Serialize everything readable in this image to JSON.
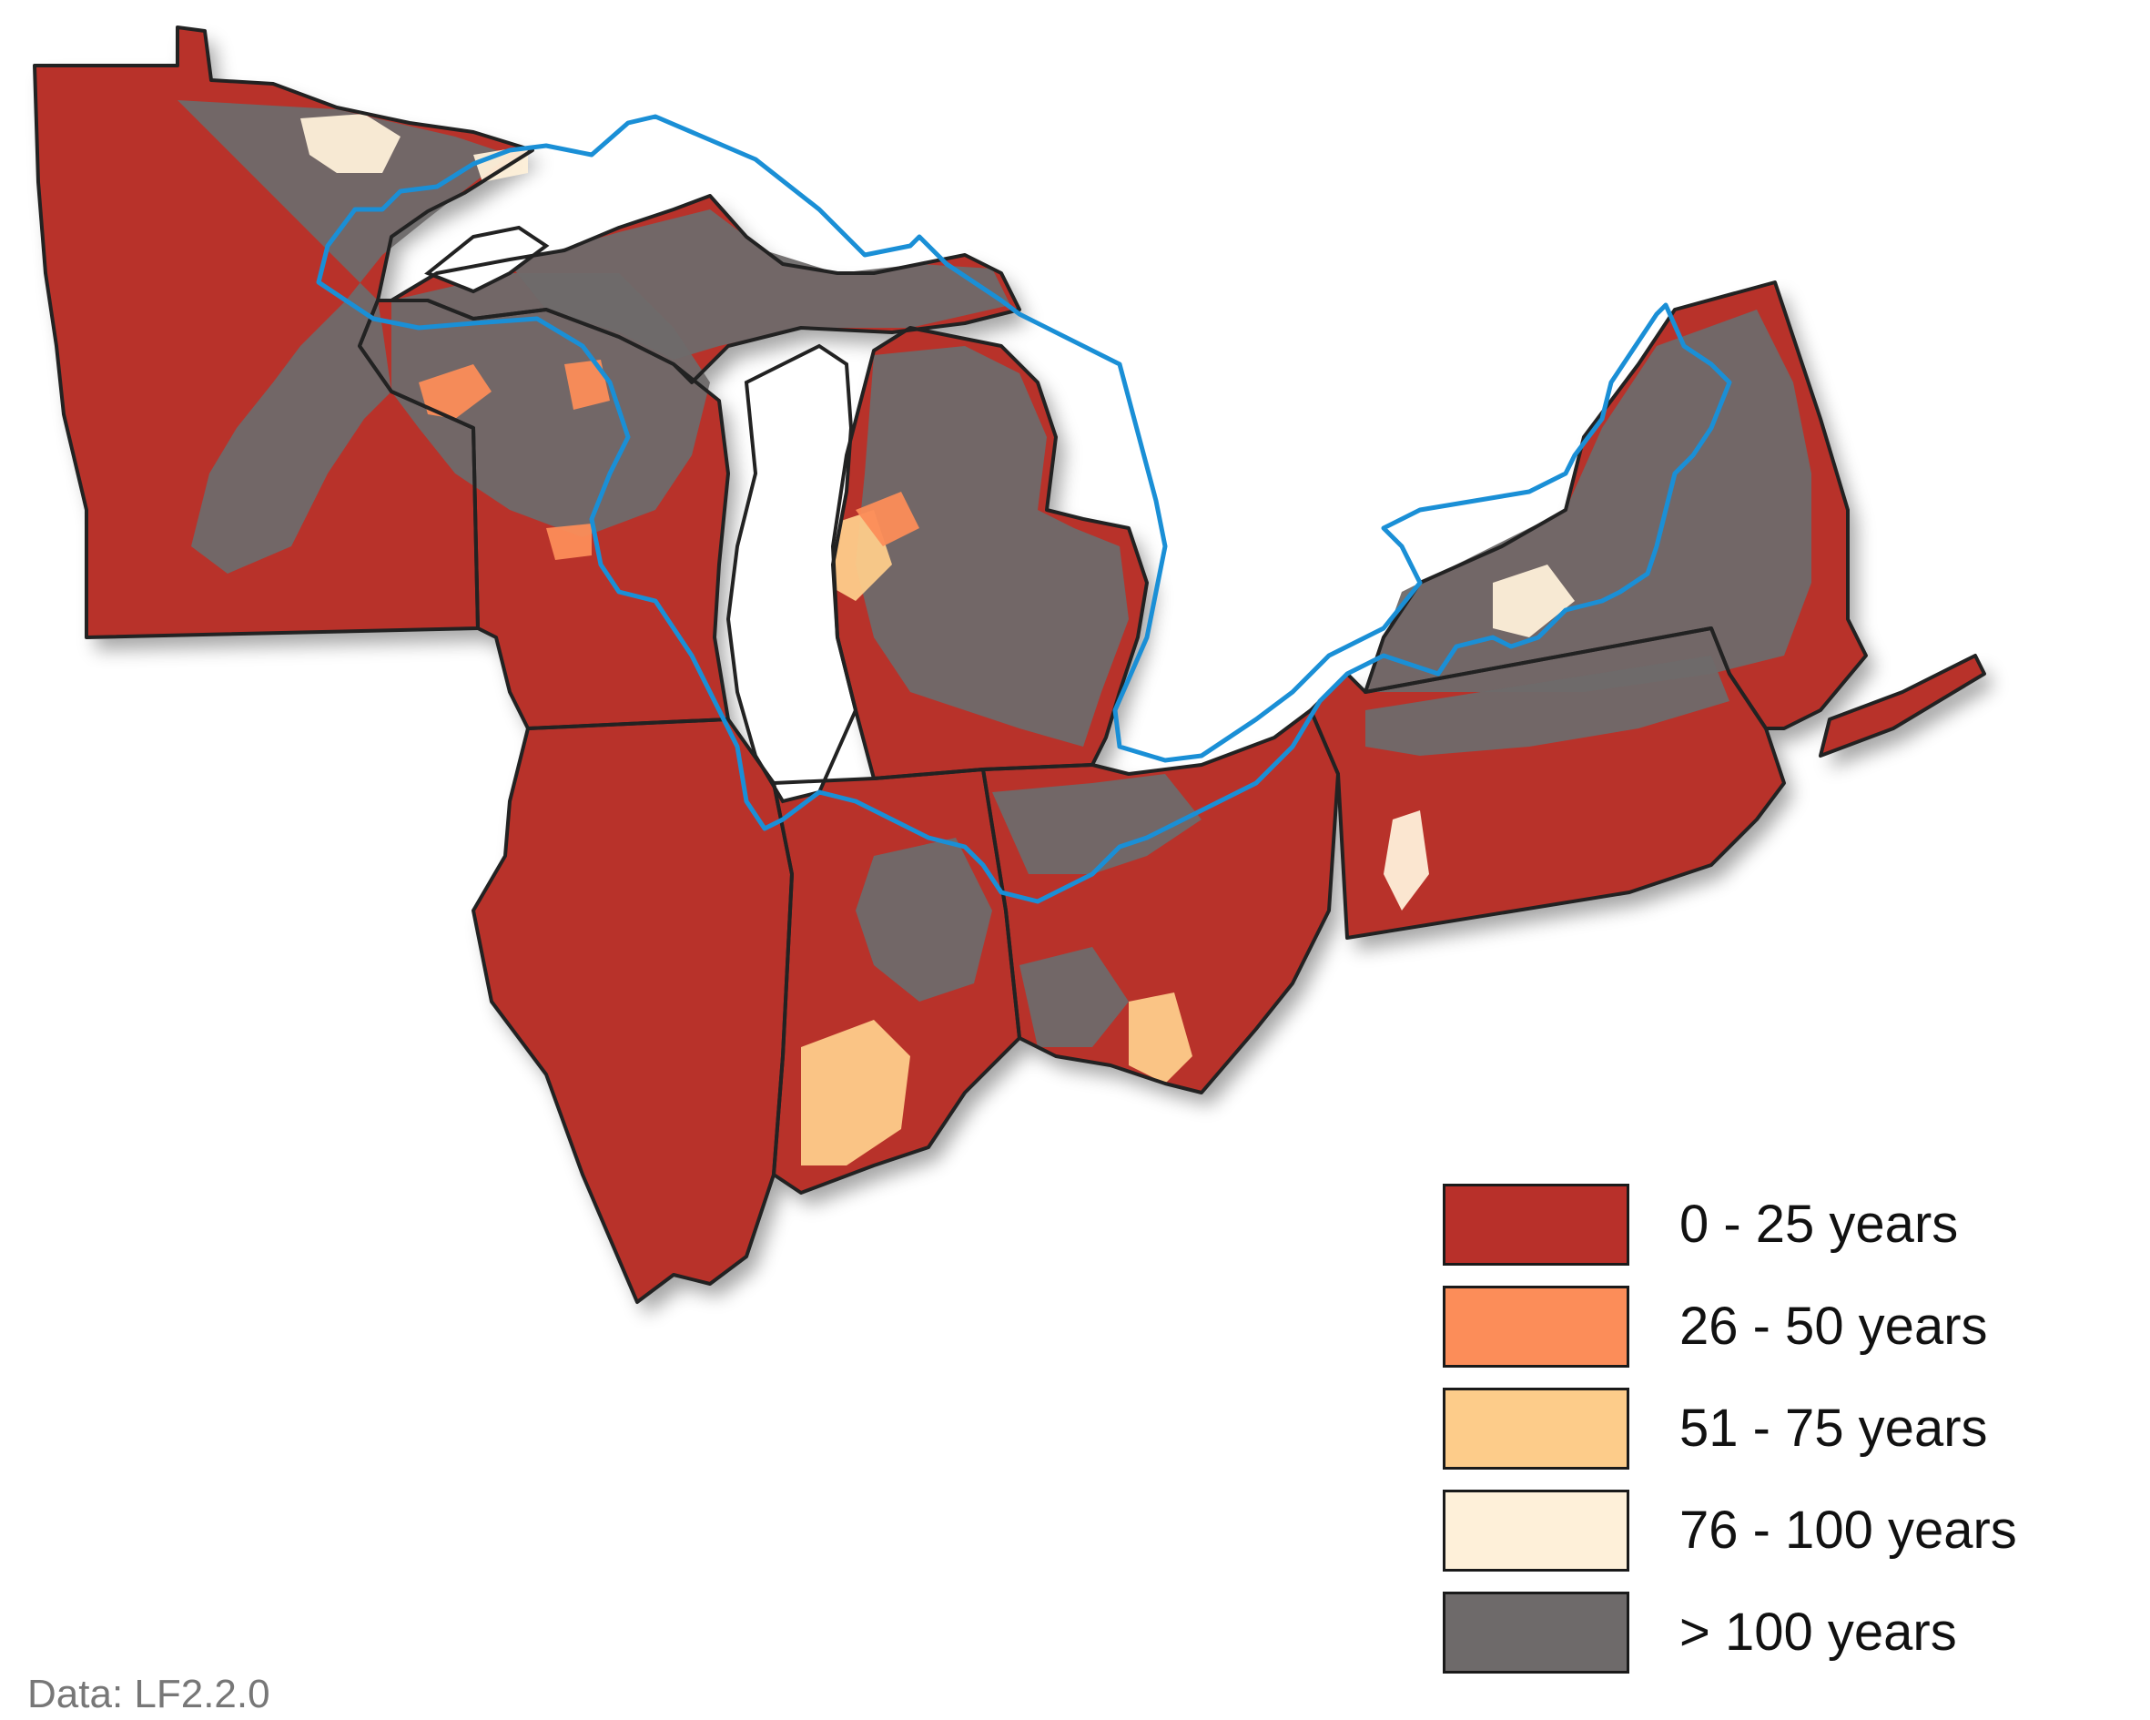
{
  "map": {
    "colors": {
      "state_outline": "#222222",
      "basin_boundary": "#1a8fd6",
      "lake": "#ffffff"
    }
  },
  "legend": {
    "items": [
      {
        "label": "0 - 25 years",
        "color": "#b8302a"
      },
      {
        "label": "26 - 50 years",
        "color": "#fc8d59"
      },
      {
        "label": "51 - 75 years",
        "color": "#fdcc8a"
      },
      {
        "label": "76 - 100 years",
        "color": "#fef0d9"
      },
      {
        "label": "> 100 years",
        "color": "#6e6a6a"
      }
    ]
  },
  "source_note": "Data: LF2.2.0"
}
